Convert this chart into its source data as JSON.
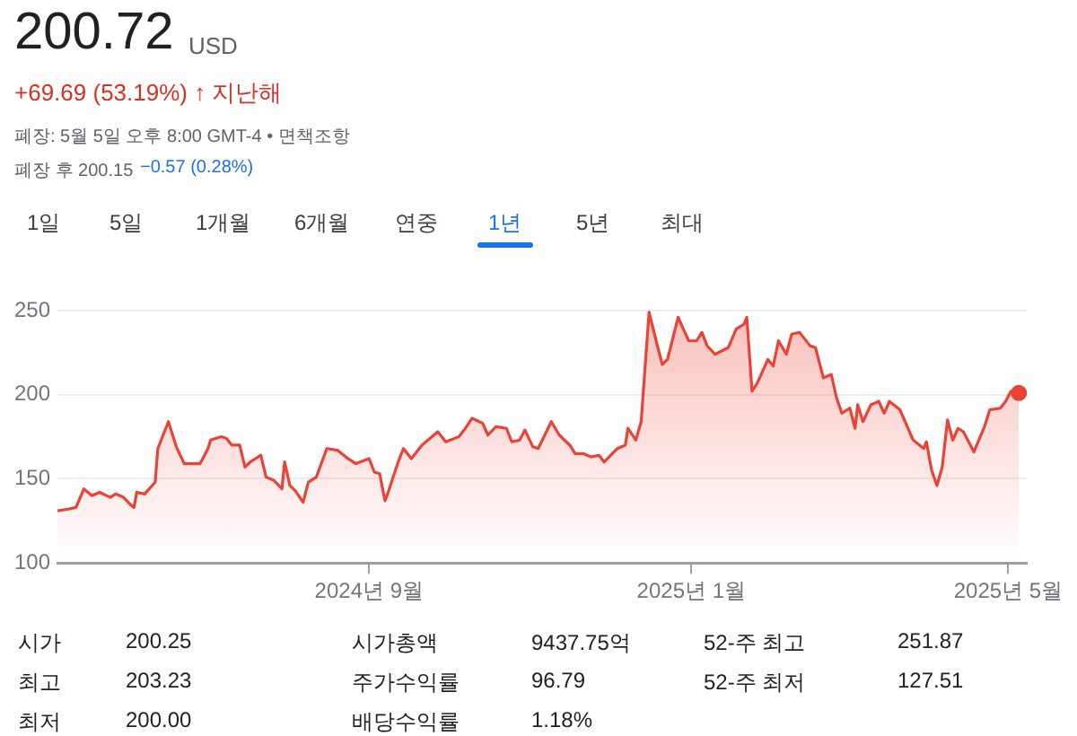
{
  "chart_data": {
    "type": "area",
    "title": "200.72",
    "subtitle": "+69.69 (53.19%) ↑ 지난해",
    "annotations": [
      "USD",
      "폐장: 5월 5일 오후 8:00 GMT-4 • 면책조항",
      "폐장 후 200.15",
      "−0.57 (0.28%)",
      "1일",
      "5일",
      "1개월",
      "6개월",
      "연중",
      "1년",
      "5년",
      "최대",
      "시가",
      "200.25",
      "시가총액",
      "9437.75억",
      "52-주 최고",
      "251.87",
      "최고",
      "203.23",
      "주가수익률",
      "96.79",
      "52-주 최저",
      "127.51",
      "최저",
      "200.00",
      "배당수익률",
      "1.18%"
    ],
    "x": [
      "2024-05-06",
      "2024-05-10",
      "2024-05-13",
      "2024-05-16",
      "2024-05-19",
      "2024-05-22",
      "2024-05-26",
      "2024-05-28",
      "2024-05-31",
      "2024-06-03",
      "2024-06-04",
      "2024-06-05",
      "2024-06-08",
      "2024-06-12",
      "2024-06-13",
      "2024-06-17",
      "2024-06-20",
      "2024-06-23",
      "2024-06-29",
      "2024-07-02",
      "2024-07-03",
      "2024-07-07",
      "2024-07-09",
      "2024-07-11",
      "2024-07-14",
      "2024-07-16",
      "2024-07-18",
      "2024-07-22",
      "2024-07-24",
      "2024-07-27",
      "2024-07-30",
      "2024-07-31",
      "2024-08-02",
      "2024-08-04",
      "2024-08-07",
      "2024-08-09",
      "2024-08-12",
      "2024-08-16",
      "2024-08-20",
      "2024-08-24",
      "2024-08-27",
      "2024-09-01",
      "2024-09-03",
      "2024-09-05",
      "2024-09-07",
      "2024-09-08",
      "2024-09-12",
      "2024-09-14",
      "2024-09-17",
      "2024-09-21",
      "2024-09-27",
      "2024-09-30",
      "2024-10-05",
      "2024-10-07",
      "2024-10-10",
      "2024-10-14",
      "2024-10-16",
      "2024-10-19",
      "2024-10-23",
      "2024-10-25",
      "2024-10-28",
      "2024-10-30",
      "2024-11-02",
      "2024-11-04",
      "2024-11-09",
      "2024-11-12",
      "2024-11-16",
      "2024-11-18",
      "2024-11-21",
      "2024-11-24",
      "2024-11-27",
      "2024-11-29",
      "2024-12-04",
      "2024-12-07",
      "2024-12-08",
      "2024-12-11",
      "2024-12-13",
      "2024-12-16",
      "2024-12-19",
      "2024-12-21",
      "2024-12-23",
      "2024-12-27",
      "2024-12-31",
      "2025-01-03",
      "2025-01-05",
      "2025-01-07",
      "2025-01-10",
      "2025-01-15",
      "2025-01-18",
      "2025-01-21",
      "2025-01-22",
      "2025-01-24",
      "2025-01-26",
      "2025-01-30",
      "2025-02-01",
      "2025-02-03",
      "2025-02-06",
      "2025-02-08",
      "2025-02-11",
      "2025-02-15",
      "2025-02-17",
      "2025-02-20",
      "2025-02-23",
      "2025-02-25",
      "2025-02-27",
      "2025-03-02",
      "2025-03-04",
      "2025-03-05",
      "2025-03-07",
      "2025-03-10",
      "2025-03-13",
      "2025-03-15",
      "2025-03-17",
      "2025-03-21",
      "2025-03-26",
      "2025-03-30",
      "2025-03-31",
      "2025-04-02",
      "2025-04-04",
      "2025-04-06",
      "2025-04-08",
      "2025-04-10",
      "2025-04-12",
      "2025-04-14",
      "2025-04-18",
      "2025-04-22",
      "2025-04-24",
      "2025-04-28",
      "2025-04-30",
      "2025-05-02",
      "2025-05-05"
    ],
    "series": [
      {
        "color": "#ea4335",
        "values": [
          131,
          132,
          133,
          144,
          140,
          142,
          139,
          141,
          139,
          134,
          133,
          142,
          141,
          148,
          168,
          184,
          169,
          159,
          159,
          168,
          173,
          175,
          174,
          170,
          170,
          157,
          160,
          164,
          151,
          149,
          144,
          160,
          146,
          143,
          136,
          148,
          151,
          168,
          167,
          162,
          159,
          162,
          154,
          153,
          137,
          141,
          160,
          168,
          162,
          170,
          178,
          172,
          175,
          179,
          186,
          183,
          176,
          181,
          180,
          172,
          173,
          179,
          169,
          168,
          184,
          176,
          170,
          165,
          165,
          163,
          164,
          160,
          168,
          170,
          180,
          173,
          184,
          249,
          230,
          218,
          221,
          246,
          232,
          232,
          237,
          229,
          224,
          228,
          239,
          242,
          246,
          202,
          207,
          221,
          217,
          232,
          224,
          236,
          237,
          229,
          228,
          210,
          212,
          198,
          189,
          192,
          180,
          194,
          184,
          194,
          196,
          189,
          196,
          191,
          173,
          168,
          172,
          155,
          146,
          157,
          185,
          173,
          180,
          178,
          166,
          181,
          191,
          192,
          196,
          202,
          201
        ]
      },
      {
        "type": "scatter",
        "marker": "circle",
        "color": "#ea4335",
        "x": [
          "2025-05-05"
        ],
        "values": [
          201
        ]
      }
    ],
    "xlim": [
      "2024-05-06",
      "2025-05-08"
    ],
    "xticks": [
      {
        "value": "2024-09-01",
        "label": "2024년 9월"
      },
      {
        "value": "2025-01-01",
        "label": "2025년 1월"
      },
      {
        "value": "2025-05-01",
        "label": "2025년 5월"
      }
    ],
    "ylim": [
      100,
      250
    ],
    "yticks": [
      100,
      150,
      200,
      250
    ],
    "grid": "y"
  }
}
